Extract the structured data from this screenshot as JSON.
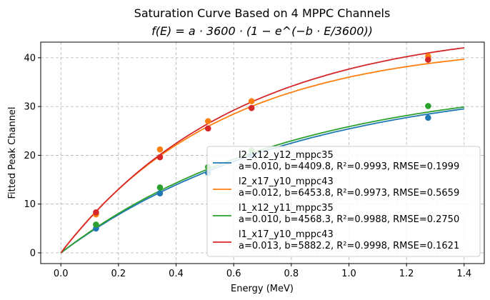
{
  "chart_data": {
    "type": "line",
    "title": "Saturation Curve Based on 4 MPPC Channels",
    "subtitle": "f(E) = a · 3600 · (1 − e^(−b · E/3600))",
    "xlabel": "Energy (MeV)",
    "ylabel": "Fitted Peak Channel",
    "xlim": [
      -0.07,
      1.47
    ],
    "ylim": [
      -2.2,
      43.2
    ],
    "xticks": [
      0.0,
      0.2,
      0.4,
      0.6,
      0.8,
      1.0,
      1.2,
      1.4
    ],
    "xtick_labels": [
      "0.0",
      "0.2",
      "0.4",
      "0.6",
      "0.8",
      "1.0",
      "1.2",
      "1.4"
    ],
    "yticks": [
      0,
      10,
      20,
      30,
      40
    ],
    "ytick_labels": [
      "0",
      "10",
      "20",
      "30",
      "40"
    ],
    "grid": true,
    "legend_position": "lower-right",
    "curve_x_range": [
      0,
      1.4
    ],
    "series": [
      {
        "name": "l2_x12_y12_mppc35",
        "label": "a=0.010, b=4409.8, R²=0.9993, RMSE=0.1999",
        "color": "#1f77b4",
        "a": 0.01,
        "b": 4409.8,
        "points": [
          [
            0.122,
            5.0
          ],
          [
            0.344,
            12.2
          ],
          [
            0.511,
            16.4
          ],
          [
            0.662,
            20.0
          ],
          [
            1.275,
            27.7
          ]
        ]
      },
      {
        "name": "l2_x17_y10_mppc43",
        "label": "a=0.012, b=6453.8, R²=0.9973, RMSE=0.5659",
        "color": "#ff7f0e",
        "a": 0.012,
        "b": 6453.8,
        "points": [
          [
            0.122,
            7.9
          ],
          [
            0.344,
            21.2
          ],
          [
            0.511,
            27.0
          ],
          [
            0.662,
            31.1
          ],
          [
            1.275,
            40.3
          ]
        ]
      },
      {
        "name": "l1_x12_y11_mppc35",
        "label": "a=0.010, b=4568.3, R²=0.9988, RMSE=0.2750",
        "color": "#2ca02c",
        "a": 0.01,
        "b": 4568.3,
        "points": [
          [
            0.122,
            5.8
          ],
          [
            0.344,
            13.4
          ],
          [
            0.511,
            17.6
          ],
          [
            0.662,
            21.0
          ],
          [
            1.275,
            30.1
          ]
        ]
      },
      {
        "name": "l1_x17_y10_mppc43",
        "label": "a=0.013, b=5882.2, R²=0.9998, RMSE=0.1621",
        "color": "#d62728",
        "a": 0.013,
        "b": 5882.2,
        "points": [
          [
            0.122,
            8.3
          ],
          [
            0.344,
            19.6
          ],
          [
            0.511,
            25.5
          ],
          [
            0.662,
            29.7
          ],
          [
            1.275,
            39.6
          ]
        ]
      }
    ]
  }
}
